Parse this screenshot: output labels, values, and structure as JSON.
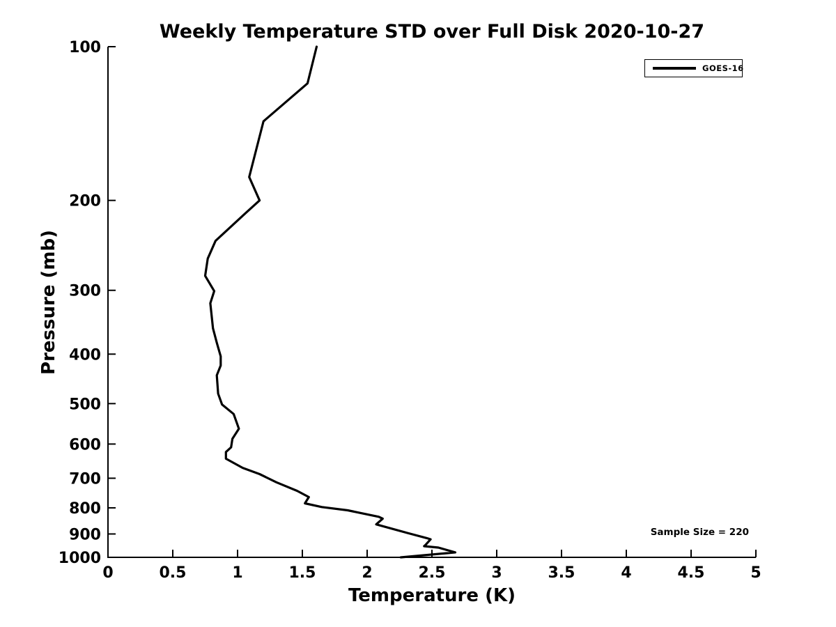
{
  "chart_data": {
    "type": "line",
    "title": "Weekly Temperature STD over Full Disk 2020-10-27",
    "xlabel": "Temperature (K)",
    "ylabel": "Pressure (mb)",
    "xlim": [
      0,
      5
    ],
    "ylim": [
      100,
      1000
    ],
    "x_scale": "linear",
    "y_scale": "log",
    "y_inverted": true,
    "grid": false,
    "legend_position": "top-right",
    "x_tick_labels": [
      "0",
      "0.5",
      "1",
      "1.5",
      "2",
      "2.5",
      "3",
      "3.5",
      "4",
      "4.5",
      "5"
    ],
    "y_tick_labels": [
      "100",
      "200",
      "300",
      "400",
      "500",
      "600",
      "700",
      "800",
      "900",
      "1000"
    ],
    "annotation": "Sample Size = 220",
    "line_color": "#000000",
    "series": [
      {
        "name": "GOES-16",
        "color": "#000000",
        "x_units": "K",
        "y_units": "mb",
        "x": [
          1.61,
          1.54,
          1.2,
          1.09,
          1.17,
          1.06,
          0.83,
          0.77,
          0.75,
          0.82,
          0.79,
          0.81,
          0.84,
          0.87,
          0.87,
          0.84,
          0.85,
          0.88,
          0.97,
          1.01,
          0.96,
          0.95,
          0.91,
          0.91,
          1.04,
          1.17,
          1.3,
          1.46,
          1.55,
          1.52,
          1.65,
          1.85,
          2.09,
          2.12,
          2.07,
          2.31,
          2.46,
          2.49,
          2.45,
          2.44,
          2.55,
          2.68,
          2.26
        ],
        "y": [
          100,
          118,
          140,
          180,
          200,
          212,
          240,
          260,
          281,
          301,
          318,
          356,
          380,
          404,
          421,
          440,
          478,
          502,
          524,
          560,
          586,
          609,
          622,
          641,
          668,
          687,
          713,
          741,
          762,
          784,
          797,
          809,
          833,
          840,
          862,
          896,
          917,
          922,
          946,
          951,
          957,
          978,
          1000
        ]
      }
    ]
  }
}
